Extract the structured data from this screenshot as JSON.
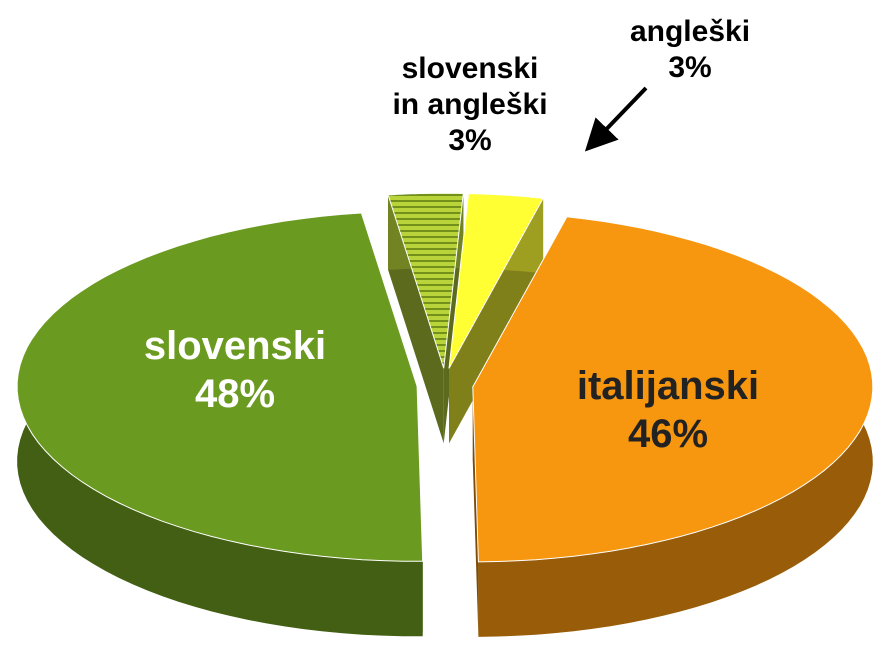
{
  "chart_data": {
    "type": "pie3d",
    "categories": [
      "slovenski in angleški",
      "angleški",
      "italijanski",
      "slovenski"
    ],
    "values": [
      3,
      3,
      46,
      48
    ],
    "value_labels": [
      "3%",
      "3%",
      "46%",
      "48%"
    ],
    "colors": [
      "#b8d43a",
      "#ffff33",
      "#f7960f",
      "#6a9a1f"
    ]
  }
}
